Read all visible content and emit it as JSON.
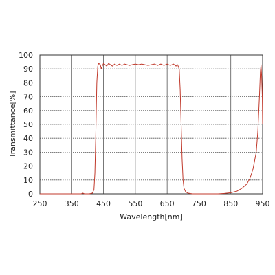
{
  "chart_data": {
    "type": "line",
    "xlabel": "Wavelength[nm]",
    "ylabel": "Transmittance[%]",
    "xlim": [
      250,
      950
    ],
    "ylim": [
      0,
      100
    ],
    "x_ticks": [
      250,
      350,
      450,
      550,
      650,
      750,
      850,
      950
    ],
    "y_ticks": [
      0,
      10,
      20,
      30,
      40,
      50,
      60,
      70,
      80,
      90,
      100
    ],
    "x_tick_labels": [
      "250",
      "350",
      "450",
      "550",
      "650",
      "750",
      "850",
      "950"
    ],
    "y_tick_labels": [
      "0",
      "10",
      "20",
      "30",
      "40",
      "50",
      "60",
      "70",
      "80",
      "90",
      "100"
    ],
    "grid": {
      "vertical": "solid",
      "horizontal": "dotted"
    },
    "series": [
      {
        "color": "#c0392b",
        "points": [
          [
            250,
            0
          ],
          [
            380,
            0
          ],
          [
            385,
            0.5
          ],
          [
            390,
            0
          ],
          [
            405,
            0
          ],
          [
            415,
            0.5
          ],
          [
            420,
            3
          ],
          [
            423,
            15
          ],
          [
            426,
            45
          ],
          [
            429,
            80
          ],
          [
            432,
            92
          ],
          [
            435,
            94
          ],
          [
            440,
            93
          ],
          [
            443,
            90
          ],
          [
            446,
            92
          ],
          [
            450,
            94
          ],
          [
            455,
            93
          ],
          [
            460,
            92
          ],
          [
            466,
            94
          ],
          [
            472,
            93
          ],
          [
            478,
            92
          ],
          [
            485,
            93.5
          ],
          [
            492,
            92.5
          ],
          [
            500,
            93.5
          ],
          [
            508,
            92.5
          ],
          [
            516,
            93.5
          ],
          [
            524,
            93
          ],
          [
            532,
            92.5
          ],
          [
            540,
            93
          ],
          [
            550,
            93.5
          ],
          [
            560,
            93
          ],
          [
            570,
            93.5
          ],
          [
            580,
            93
          ],
          [
            590,
            92.5
          ],
          [
            600,
            93
          ],
          [
            610,
            93.5
          ],
          [
            620,
            92.5
          ],
          [
            630,
            93.5
          ],
          [
            640,
            92.5
          ],
          [
            650,
            93.5
          ],
          [
            660,
            92.5
          ],
          [
            670,
            93.5
          ],
          [
            678,
            92
          ],
          [
            683,
            93
          ],
          [
            688,
            90
          ],
          [
            691,
            75
          ],
          [
            694,
            50
          ],
          [
            697,
            25
          ],
          [
            700,
            10
          ],
          [
            703,
            4
          ],
          [
            708,
            1.5
          ],
          [
            715,
            0.5
          ],
          [
            730,
            0
          ],
          [
            810,
            0
          ],
          [
            830,
            0.3
          ],
          [
            850,
            0.8
          ],
          [
            870,
            2
          ],
          [
            885,
            4
          ],
          [
            900,
            7
          ],
          [
            910,
            11
          ],
          [
            920,
            18
          ],
          [
            930,
            30
          ],
          [
            935,
            45
          ],
          [
            940,
            70
          ],
          [
            943,
            88
          ],
          [
            945,
            93
          ],
          [
            947,
            85
          ],
          [
            949,
            70
          ],
          [
            950,
            50
          ]
        ]
      }
    ]
  }
}
